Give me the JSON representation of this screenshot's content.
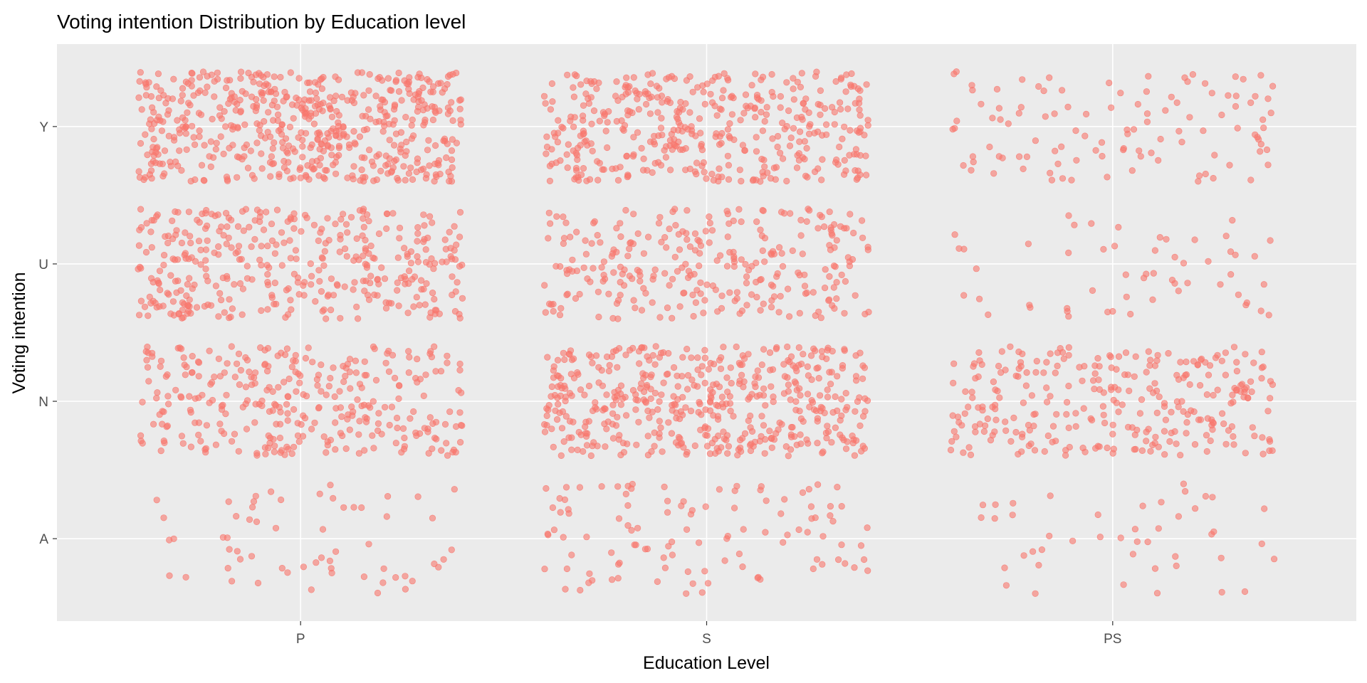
{
  "chart_data": {
    "type": "scatter",
    "jitter": true,
    "title": "Voting intention Distribution by Education level",
    "xlabel": "Education Level",
    "ylabel": "Voting intention",
    "x_categories": [
      "P",
      "S",
      "PS"
    ],
    "y_categories": [
      "A",
      "N",
      "U",
      "Y"
    ],
    "counts": {
      "P": {
        "A": 60,
        "N": 320,
        "U": 380,
        "Y": 560
      },
      "S": {
        "A": 110,
        "N": 480,
        "U": 280,
        "Y": 420
      },
      "PS": {
        "A": 45,
        "N": 290,
        "U": 55,
        "Y": 110
      }
    },
    "grid": true,
    "legend": "none",
    "colors": {
      "point": "#f8766d",
      "panel": "#ebebeb",
      "grid": "#ffffff",
      "text": "#000000",
      "tick_text": "#4d4d4d"
    }
  }
}
